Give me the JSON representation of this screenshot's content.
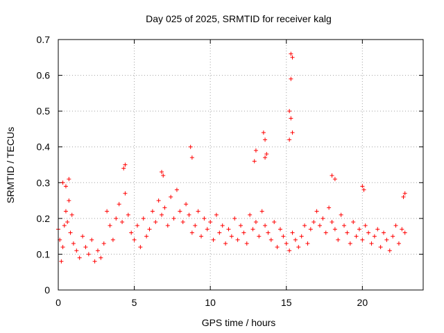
{
  "chart_data": {
    "type": "scatter",
    "title": "Day 025 of 2025, SRMTID for receiver kalg",
    "xlabel": "GPS time / hours",
    "ylabel": "SRMTID / TECUs",
    "xlim": [
      0,
      24
    ],
    "ylim": [
      0,
      0.7
    ],
    "grid": true,
    "marker": "+",
    "xticks": [
      0,
      5,
      10,
      15,
      20
    ],
    "xtick_labels": [
      "0",
      "5",
      "10",
      "15",
      "20"
    ],
    "yticks": [
      0,
      0.1,
      0.2,
      0.3,
      0.4,
      0.5,
      0.6,
      0.7
    ],
    "ytick_labels": [
      "0",
      "0.1",
      "0.2",
      "0.3",
      "0.4",
      "0.5",
      "0.6",
      "0.7"
    ],
    "series": [
      {
        "name": "SRMTID",
        "color": "#ff0000",
        "x": [
          0.0,
          0.1,
          0.2,
          0.3,
          0.4,
          0.5,
          0.6,
          0.7,
          0.8,
          0.9,
          1.0,
          1.2,
          1.4,
          1.6,
          1.8,
          2.0,
          2.2,
          2.4,
          2.6,
          2.8,
          3.0,
          3.2,
          3.4,
          3.6,
          3.8,
          4.0,
          4.2,
          4.4,
          4.6,
          4.8,
          5.0,
          5.2,
          5.4,
          5.6,
          5.8,
          6.0,
          6.2,
          6.4,
          6.6,
          6.8,
          7.0,
          7.2,
          7.4,
          7.6,
          7.8,
          8.0,
          8.2,
          8.4,
          8.6,
          8.8,
          9.0,
          9.2,
          9.4,
          9.6,
          9.8,
          10.0,
          10.2,
          10.4,
          10.6,
          10.8,
          11.0,
          11.2,
          11.4,
          11.6,
          11.8,
          12.0,
          12.2,
          12.4,
          12.6,
          12.8,
          13.0,
          13.2,
          13.4,
          13.6,
          13.8,
          14.0,
          14.2,
          14.4,
          14.6,
          14.8,
          15.0,
          15.2,
          15.4,
          15.6,
          15.8,
          16.0,
          16.2,
          16.4,
          16.6,
          16.8,
          17.0,
          17.2,
          17.4,
          17.6,
          17.8,
          18.0,
          18.2,
          18.4,
          18.6,
          18.8,
          19.0,
          19.2,
          19.4,
          19.6,
          19.8,
          20.0,
          20.2,
          20.4,
          20.6,
          20.8,
          21.0,
          21.2,
          21.4,
          21.6,
          21.8,
          22.0,
          22.2,
          22.4,
          22.6,
          22.8,
          0.3,
          0.5,
          0.7,
          4.3,
          4.4,
          6.8,
          6.9,
          8.7,
          8.8,
          12.9,
          13.0,
          13.5,
          13.6,
          13.7,
          13.6,
          15.2,
          15.3,
          15.3,
          15.4,
          15.3,
          15.2,
          15.4,
          18.0,
          18.2,
          20.0,
          20.1,
          22.7,
          22.8
        ],
        "y": [
          0.17,
          0.14,
          0.08,
          0.12,
          0.18,
          0.22,
          0.19,
          0.25,
          0.16,
          0.21,
          0.13,
          0.11,
          0.09,
          0.15,
          0.12,
          0.1,
          0.14,
          0.08,
          0.11,
          0.09,
          0.13,
          0.22,
          0.18,
          0.14,
          0.2,
          0.24,
          0.19,
          0.27,
          0.21,
          0.16,
          0.14,
          0.18,
          0.12,
          0.2,
          0.15,
          0.17,
          0.22,
          0.19,
          0.25,
          0.21,
          0.23,
          0.18,
          0.26,
          0.2,
          0.28,
          0.22,
          0.19,
          0.24,
          0.21,
          0.16,
          0.18,
          0.22,
          0.15,
          0.2,
          0.17,
          0.19,
          0.14,
          0.21,
          0.16,
          0.18,
          0.13,
          0.17,
          0.15,
          0.2,
          0.14,
          0.18,
          0.16,
          0.13,
          0.21,
          0.17,
          0.19,
          0.15,
          0.22,
          0.18,
          0.16,
          0.14,
          0.19,
          0.12,
          0.17,
          0.15,
          0.13,
          0.11,
          0.16,
          0.14,
          0.12,
          0.15,
          0.18,
          0.13,
          0.17,
          0.19,
          0.22,
          0.18,
          0.2,
          0.16,
          0.23,
          0.19,
          0.17,
          0.14,
          0.21,
          0.18,
          0.16,
          0.13,
          0.19,
          0.15,
          0.17,
          0.14,
          0.18,
          0.16,
          0.13,
          0.15,
          0.17,
          0.12,
          0.16,
          0.14,
          0.11,
          0.15,
          0.18,
          0.13,
          0.17,
          0.16,
          0.3,
          0.29,
          0.31,
          0.34,
          0.35,
          0.33,
          0.32,
          0.4,
          0.37,
          0.36,
          0.39,
          0.44,
          0.42,
          0.38,
          0.37,
          0.5,
          0.48,
          0.59,
          0.65,
          0.66,
          0.42,
          0.44,
          0.32,
          0.31,
          0.29,
          0.28,
          0.26,
          0.27
        ]
      }
    ]
  }
}
